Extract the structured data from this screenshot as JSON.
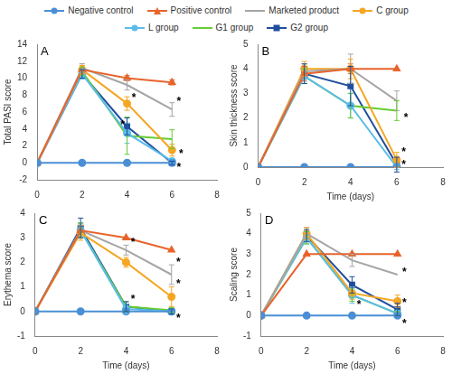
{
  "chart_data": [
    {
      "type": "line",
      "title": "A",
      "y_label": "Total PASI score",
      "x": [
        0,
        2,
        4,
        6
      ],
      "xlim": [
        0,
        8
      ],
      "xticks": [
        0,
        2,
        4,
        6,
        8
      ],
      "ylim": [
        -2,
        14
      ],
      "yticks": [
        -2,
        0,
        2,
        4,
        6,
        8,
        10,
        12,
        14
      ],
      "grid": false,
      "legend": "top",
      "series": [
        {
          "name": "Negative control",
          "color": "#4a8fd6",
          "marker": "circle",
          "values": [
            0,
            0,
            0,
            0
          ],
          "errors": [
            0,
            0,
            0,
            0
          ]
        },
        {
          "name": "Positive control",
          "color": "#e8642c",
          "marker": "triangle",
          "values": [
            0,
            11,
            10,
            9.5
          ],
          "errors": [
            0,
            0.5,
            0.3,
            0.3
          ]
        },
        {
          "name": "Marketed product",
          "color": "#a5a5a5",
          "marker": "none",
          "values": [
            0,
            11.2,
            9.2,
            6.3
          ],
          "errors": [
            0,
            0.5,
            0.6,
            0.8
          ]
        },
        {
          "name": "C group",
          "color": "#f5a623",
          "marker": "circle",
          "values": [
            0,
            11,
            7,
            1.5
          ],
          "errors": [
            0,
            0.5,
            0.8,
            0.7
          ]
        },
        {
          "name": "L group",
          "color": "#5bbcea",
          "marker": "circle",
          "values": [
            0,
            10.5,
            3.5,
            0.2
          ],
          "errors": [
            0,
            0.6,
            1.2,
            0.3
          ]
        },
        {
          "name": "G1 group",
          "color": "#66cc33",
          "marker": "none",
          "values": [
            0,
            10.8,
            3.2,
            2.8
          ],
          "errors": [
            0,
            0.5,
            2.2,
            1.1
          ]
        },
        {
          "name": "G2 group",
          "color": "#1f4e9c",
          "marker": "square",
          "values": [
            0,
            10.5,
            4.3,
            0
          ],
          "errors": [
            0,
            0.5,
            1.0,
            0.2
          ]
        }
      ],
      "annotations": [
        {
          "text": "*",
          "x": 6.3,
          "y": 7.2
        },
        {
          "text": "*",
          "x": 4.3,
          "y": 7.6
        },
        {
          "text": "*",
          "x": 3.8,
          "y": 4.4
        },
        {
          "text": "*",
          "x": 6.4,
          "y": 1.0
        },
        {
          "text": "*",
          "x": 6.3,
          "y": -0.6
        }
      ]
    },
    {
      "type": "line",
      "title": "B",
      "y_label": "Skin thickness score",
      "x_label": "Time (days)",
      "x": [
        0,
        2,
        4,
        6
      ],
      "xlim": [
        0,
        8
      ],
      "xticks": [
        0,
        2,
        4,
        6,
        8
      ],
      "ylim": [
        0,
        5
      ],
      "yticks": [
        0,
        1,
        2,
        3,
        4,
        5
      ],
      "grid": false,
      "series": [
        {
          "name": "Negative control",
          "color": "#4a8fd6",
          "marker": "circle",
          "values": [
            0,
            0,
            0,
            0
          ],
          "errors": [
            0,
            0,
            0,
            0
          ]
        },
        {
          "name": "Positive control",
          "color": "#e8642c",
          "marker": "triangle",
          "values": [
            0,
            3.8,
            4,
            4
          ],
          "errors": [
            0,
            0.3,
            0.2,
            0
          ]
        },
        {
          "name": "Marketed product",
          "color": "#a5a5a5",
          "marker": "none",
          "values": [
            0,
            3.9,
            4,
            2.7
          ],
          "errors": [
            0,
            0.3,
            0.6,
            0.4
          ]
        },
        {
          "name": "C group",
          "color": "#f5a623",
          "marker": "circle",
          "values": [
            0,
            4,
            4,
            0.3
          ],
          "errors": [
            0,
            0.3,
            0.4,
            0.3
          ]
        },
        {
          "name": "L group",
          "color": "#5bbcea",
          "marker": "circle",
          "values": [
            0,
            3.7,
            2.5,
            0
          ],
          "errors": [
            0,
            0.3,
            0.5,
            0.1
          ]
        },
        {
          "name": "G1 group",
          "color": "#66cc33",
          "marker": "none",
          "values": [
            0,
            3.7,
            2.5,
            2.3
          ],
          "errors": [
            0,
            0.3,
            0.5,
            0.4
          ]
        },
        {
          "name": "G2 group",
          "color": "#1f4e9c",
          "marker": "square",
          "values": [
            0,
            3.8,
            3.3,
            0.1
          ],
          "errors": [
            0,
            0.4,
            0.8,
            0.3
          ]
        }
      ],
      "annotations": [
        {
          "text": "*",
          "x": 6.4,
          "y": 2.0
        },
        {
          "text": "*",
          "x": 6.3,
          "y": 0.6
        },
        {
          "text": "*",
          "x": 6.3,
          "y": 0.1
        }
      ]
    },
    {
      "type": "line",
      "title": "C",
      "y_label": "Erythema score",
      "x_label": "Time (days)",
      "x": [
        0,
        2,
        4,
        6
      ],
      "xlim": [
        0,
        8
      ],
      "xticks": [
        0,
        2,
        4,
        6,
        8
      ],
      "ylim": [
        -1,
        4
      ],
      "yticks": [
        -1,
        0,
        1,
        2,
        3,
        4
      ],
      "grid": false,
      "series": [
        {
          "name": "Negative control",
          "color": "#4a8fd6",
          "marker": "circle",
          "values": [
            0,
            0,
            0,
            0
          ],
          "errors": [
            0,
            0,
            0,
            0
          ]
        },
        {
          "name": "Positive control",
          "color": "#e8642c",
          "marker": "triangle",
          "values": [
            0,
            3.3,
            3,
            2.5
          ],
          "errors": [
            0,
            0.3,
            0,
            0
          ]
        },
        {
          "name": "Marketed product",
          "color": "#a5a5a5",
          "marker": "none",
          "values": [
            0,
            3.3,
            2.5,
            1.5
          ],
          "errors": [
            0,
            0.3,
            0.2,
            0.4
          ]
        },
        {
          "name": "C group",
          "color": "#f5a623",
          "marker": "circle",
          "values": [
            0,
            3.2,
            2,
            0.6
          ],
          "errors": [
            0,
            0.3,
            0.2,
            0.4
          ]
        },
        {
          "name": "L group",
          "color": "#5bbcea",
          "marker": "circle",
          "values": [
            0,
            3.3,
            0.1,
            0
          ],
          "errors": [
            0,
            0.3,
            0.2,
            0.1
          ]
        },
        {
          "name": "G1 group",
          "color": "#66cc33",
          "marker": "none",
          "values": [
            0,
            3.3,
            0.2,
            0.05
          ],
          "errors": [
            0,
            0.3,
            0.2,
            0.1
          ]
        },
        {
          "name": "G2 group",
          "color": "#1f4e9c",
          "marker": "square",
          "values": [
            0,
            3.4,
            0.2,
            0
          ],
          "errors": [
            0,
            0.4,
            0.2,
            0.1
          ]
        }
      ],
      "annotations": [
        {
          "text": "*",
          "x": 4.3,
          "y": 2.8
        },
        {
          "text": "*",
          "x": 4.3,
          "y": 0.5
        },
        {
          "text": "*",
          "x": 6.3,
          "y": 2.0
        },
        {
          "text": "*",
          "x": 6.3,
          "y": 1.1
        },
        {
          "text": "*",
          "x": 6.3,
          "y": -0.3
        }
      ]
    },
    {
      "type": "line",
      "title": "D",
      "y_label": "Scaling score",
      "x_label": "Time (days)",
      "x": [
        0,
        2,
        4,
        6
      ],
      "xlim": [
        0,
        8
      ],
      "xticks": [
        0,
        2,
        4,
        6,
        8
      ],
      "ylim": [
        -1,
        5
      ],
      "yticks": [
        -1,
        0,
        1,
        2,
        3,
        4,
        5
      ],
      "grid": false,
      "series": [
        {
          "name": "Negative control",
          "color": "#4a8fd6",
          "marker": "circle",
          "values": [
            0,
            0,
            0,
            0
          ],
          "errors": [
            0,
            0,
            0,
            0
          ]
        },
        {
          "name": "Positive control",
          "color": "#e8642c",
          "marker": "triangle",
          "values": [
            0,
            3,
            3,
            3
          ],
          "errors": [
            0,
            0,
            0,
            0
          ]
        },
        {
          "name": "Marketed product",
          "color": "#a5a5a5",
          "marker": "none",
          "values": [
            0,
            4,
            2.7,
            2
          ],
          "errors": [
            0,
            0.3,
            0.3,
            0
          ]
        },
        {
          "name": "C group",
          "color": "#f5a623",
          "marker": "circle",
          "values": [
            0,
            4,
            1.1,
            0.7
          ],
          "errors": [
            0,
            0.3,
            0.3,
            0.3
          ]
        },
        {
          "name": "L group",
          "color": "#5bbcea",
          "marker": "circle",
          "values": [
            0,
            3.8,
            1,
            0.1
          ],
          "errors": [
            0,
            0.3,
            0.4,
            0.1
          ]
        },
        {
          "name": "G1 group",
          "color": "#66cc33",
          "marker": "none",
          "values": [
            0,
            3.8,
            1,
            0.1
          ],
          "errors": [
            0,
            0.3,
            0.3,
            0.1
          ]
        },
        {
          "name": "G2 group",
          "color": "#1f4e9c",
          "marker": "square",
          "values": [
            0,
            3.9,
            1.5,
            0.3
          ],
          "errors": [
            0,
            0.3,
            0.4,
            0.3
          ]
        }
      ],
      "annotations": [
        {
          "text": "*",
          "x": 6.3,
          "y": 2.1
        },
        {
          "text": "*",
          "x": 4.3,
          "y": 0.5
        },
        {
          "text": "*",
          "x": 6.3,
          "y": 0.6
        },
        {
          "text": "*",
          "x": 6.3,
          "y": -0.4
        }
      ]
    }
  ]
}
